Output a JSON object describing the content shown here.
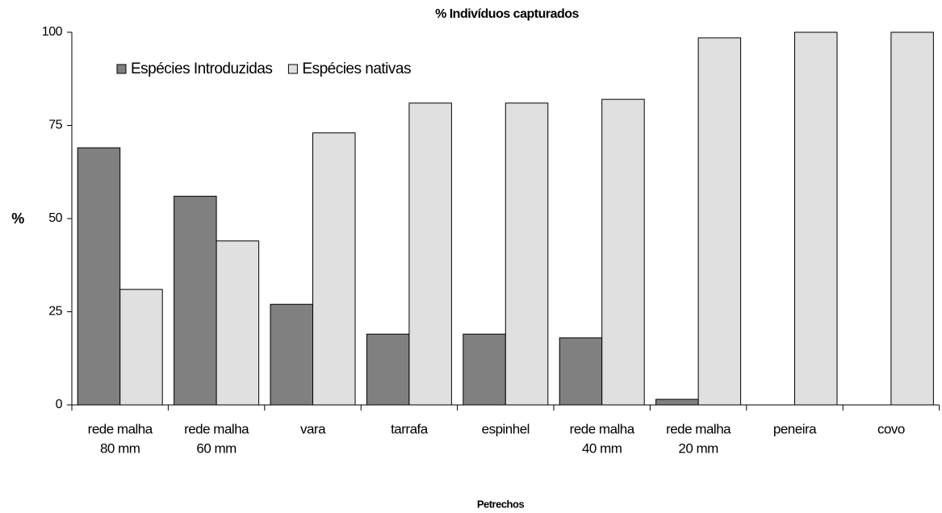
{
  "chart_data": {
    "type": "bar",
    "title": "% Indivíduos capturados",
    "x_label": "Petrechos",
    "y_label": "%",
    "categories": [
      [
        "rede malha",
        "80 mm"
      ],
      [
        "rede malha",
        "60 mm"
      ],
      [
        "vara"
      ],
      [
        "tarrafa"
      ],
      [
        "espinhel"
      ],
      [
        "rede malha",
        "40 mm"
      ],
      [
        "rede malha",
        "20 mm"
      ],
      [
        "peneira"
      ],
      [
        "covo"
      ]
    ],
    "series": [
      {
        "name": "Espécies Introduzidas",
        "color": "#808080",
        "values": [
          69,
          56,
          27,
          19,
          19,
          18,
          1.5,
          0,
          0
        ]
      },
      {
        "name": "Espécies nativas",
        "color": "#e0e0e0",
        "values": [
          31,
          44,
          73,
          81,
          81,
          82,
          98.5,
          100,
          100
        ]
      }
    ],
    "ylim": [
      0,
      100
    ],
    "yticks": [
      0,
      25,
      50,
      75,
      100
    ],
    "legend": "top-left"
  }
}
